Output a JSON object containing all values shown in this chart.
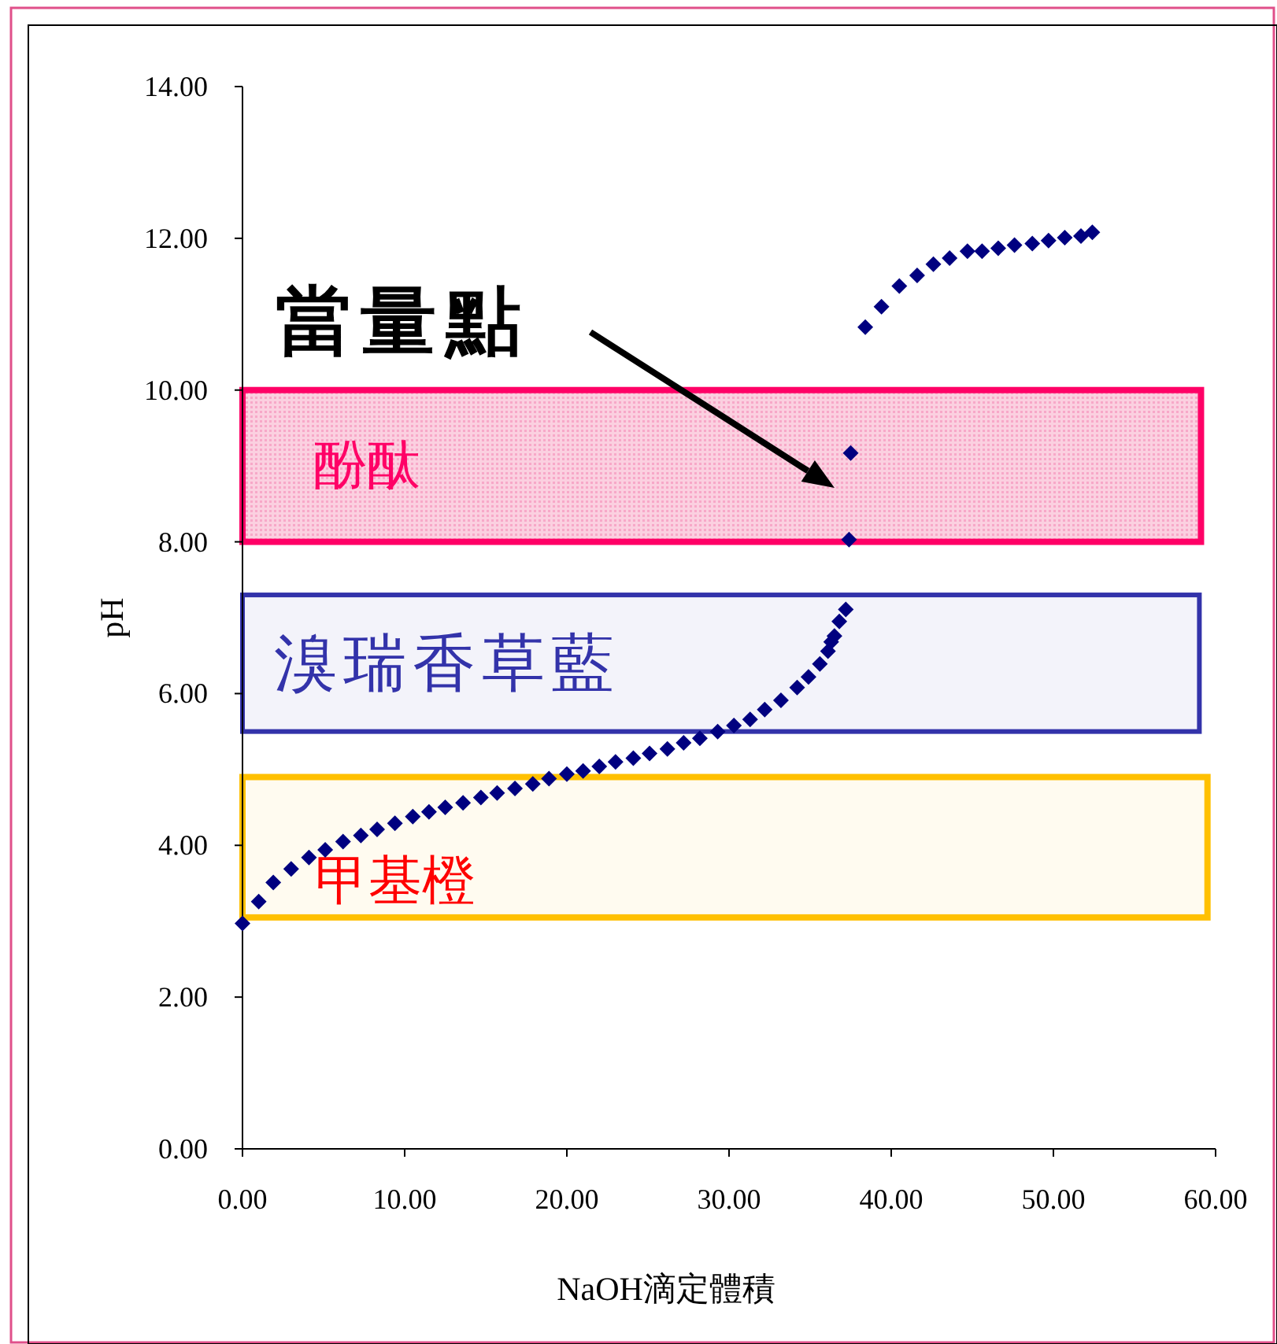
{
  "chart_data": {
    "type": "scatter",
    "xlabel": "NaOH滴定體積",
    "ylabel": "pH",
    "xlim": [
      0,
      60
    ],
    "ylim": [
      0,
      14
    ],
    "xticks": [
      {
        "value": 0,
        "label": "0.00"
      },
      {
        "value": 10,
        "label": "10.00"
      },
      {
        "value": 20,
        "label": "20.00"
      },
      {
        "value": 30,
        "label": "30.00"
      },
      {
        "value": 40,
        "label": "40.00"
      },
      {
        "value": 50,
        "label": "50.00"
      },
      {
        "value": 60,
        "label": "60.00"
      }
    ],
    "yticks": [
      {
        "value": 0,
        "label": "0.00"
      },
      {
        "value": 2,
        "label": "2.00"
      },
      {
        "value": 4,
        "label": "4.00"
      },
      {
        "value": 6,
        "label": "6.00"
      },
      {
        "value": 8,
        "label": "8.00"
      },
      {
        "value": 10,
        "label": "10.00"
      },
      {
        "value": 12,
        "label": "12.00"
      },
      {
        "value": 14,
        "label": "14.00"
      }
    ],
    "grid": false,
    "marker": "diamond",
    "series": [
      {
        "color": "#000080",
        "x": [
          0,
          1.0,
          1.9,
          3.0,
          4.1,
          5.1,
          6.2,
          7.3,
          8.3,
          9.4,
          10.5,
          11.5,
          12.5,
          13.6,
          14.7,
          15.7,
          16.8,
          17.9,
          18.9,
          20.0,
          21.0,
          22.0,
          23.0,
          24.1,
          25.1,
          26.2,
          27.2,
          28.2,
          29.3,
          30.3,
          31.3,
          32.2,
          33.2,
          34.2,
          34.9,
          35.6,
          36.1,
          36.3,
          36.5,
          36.8,
          37.2,
          37.4,
          37.5,
          38.4,
          39.4,
          40.5,
          41.6,
          42.6,
          43.6,
          44.7,
          45.6,
          46.6,
          47.6,
          48.7,
          49.7,
          50.7,
          51.7,
          52.4
        ],
        "values": [
          2.97,
          3.26,
          3.51,
          3.69,
          3.84,
          3.94,
          4.05,
          4.13,
          4.21,
          4.29,
          4.38,
          4.44,
          4.5,
          4.56,
          4.63,
          4.69,
          4.75,
          4.81,
          4.88,
          4.94,
          4.98,
          5.04,
          5.1,
          5.15,
          5.21,
          5.27,
          5.35,
          5.41,
          5.5,
          5.58,
          5.66,
          5.79,
          5.91,
          6.08,
          6.22,
          6.39,
          6.56,
          6.68,
          6.76,
          6.95,
          7.11,
          8.03,
          9.17,
          10.83,
          11.1,
          11.37,
          11.51,
          11.66,
          11.74,
          11.83,
          11.83,
          11.87,
          11.91,
          11.93,
          11.97,
          12.01,
          12.03,
          12.08
        ]
      }
    ],
    "bands": [
      {
        "axis": "y",
        "from": 8,
        "to": 10,
        "label": "酚酞",
        "color": "#ff0066"
      },
      {
        "axis": "y",
        "from": 5.5,
        "to": 7.3,
        "label": "溴瑞香草藍",
        "color": "#3333aa"
      },
      {
        "axis": "y",
        "from": 3.05,
        "to": 4.9,
        "label": "甲基橙",
        "color": "#ffc000"
      }
    ],
    "annotations": [
      "當量點"
    ]
  }
}
